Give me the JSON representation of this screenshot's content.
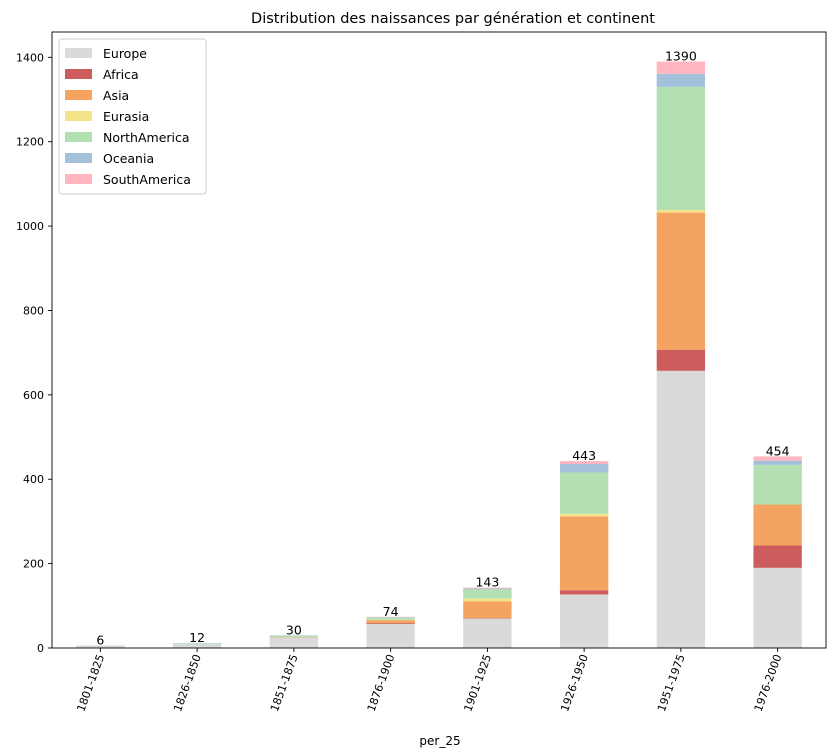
{
  "chart_data": {
    "type": "bar",
    "stacked": true,
    "title": "Distribution des naissances par génération et continent",
    "xlabel": "per_25",
    "ylabel": "",
    "ylim": [
      0,
      1460
    ],
    "yticks": [
      0,
      200,
      400,
      600,
      800,
      1000,
      1200,
      1400
    ],
    "categories": [
      "1801-1825",
      "1826-1850",
      "1851-1875",
      "1876-1900",
      "1901-1925",
      "1926-1950",
      "1951-1975",
      "1976-2000"
    ],
    "series": [
      {
        "name": "Europe",
        "color": "#dadada",
        "values": [
          5,
          10,
          25,
          57,
          70,
          127,
          657,
          190
        ]
      },
      {
        "name": "Africa",
        "color": "#cd5c5c",
        "values": [
          0,
          0,
          0,
          2,
          1,
          10,
          50,
          53
        ]
      },
      {
        "name": "Asia",
        "color": "#f4a460",
        "values": [
          0,
          0,
          1,
          7,
          40,
          175,
          325,
          97
        ]
      },
      {
        "name": "Eurasia",
        "color": "#f5e38a",
        "values": [
          0,
          0,
          0,
          1,
          6,
          6,
          6,
          0
        ]
      },
      {
        "name": "NorthAmerica",
        "color": "#b2e0b2",
        "values": [
          1,
          1,
          3,
          5,
          22,
          98,
          292,
          94
        ]
      },
      {
        "name": "Oceania",
        "color": "#a3c1da",
        "values": [
          0,
          1,
          1,
          1,
          2,
          20,
          31,
          10
        ]
      },
      {
        "name": "SouthAmerica",
        "color": "#ffb6c1",
        "values": [
          0,
          0,
          0,
          1,
          2,
          7,
          29,
          10
        ]
      }
    ],
    "totals": [
      6,
      12,
      30,
      74,
      143,
      443,
      1390,
      454
    ],
    "legend": "top-left",
    "grid": false
  }
}
